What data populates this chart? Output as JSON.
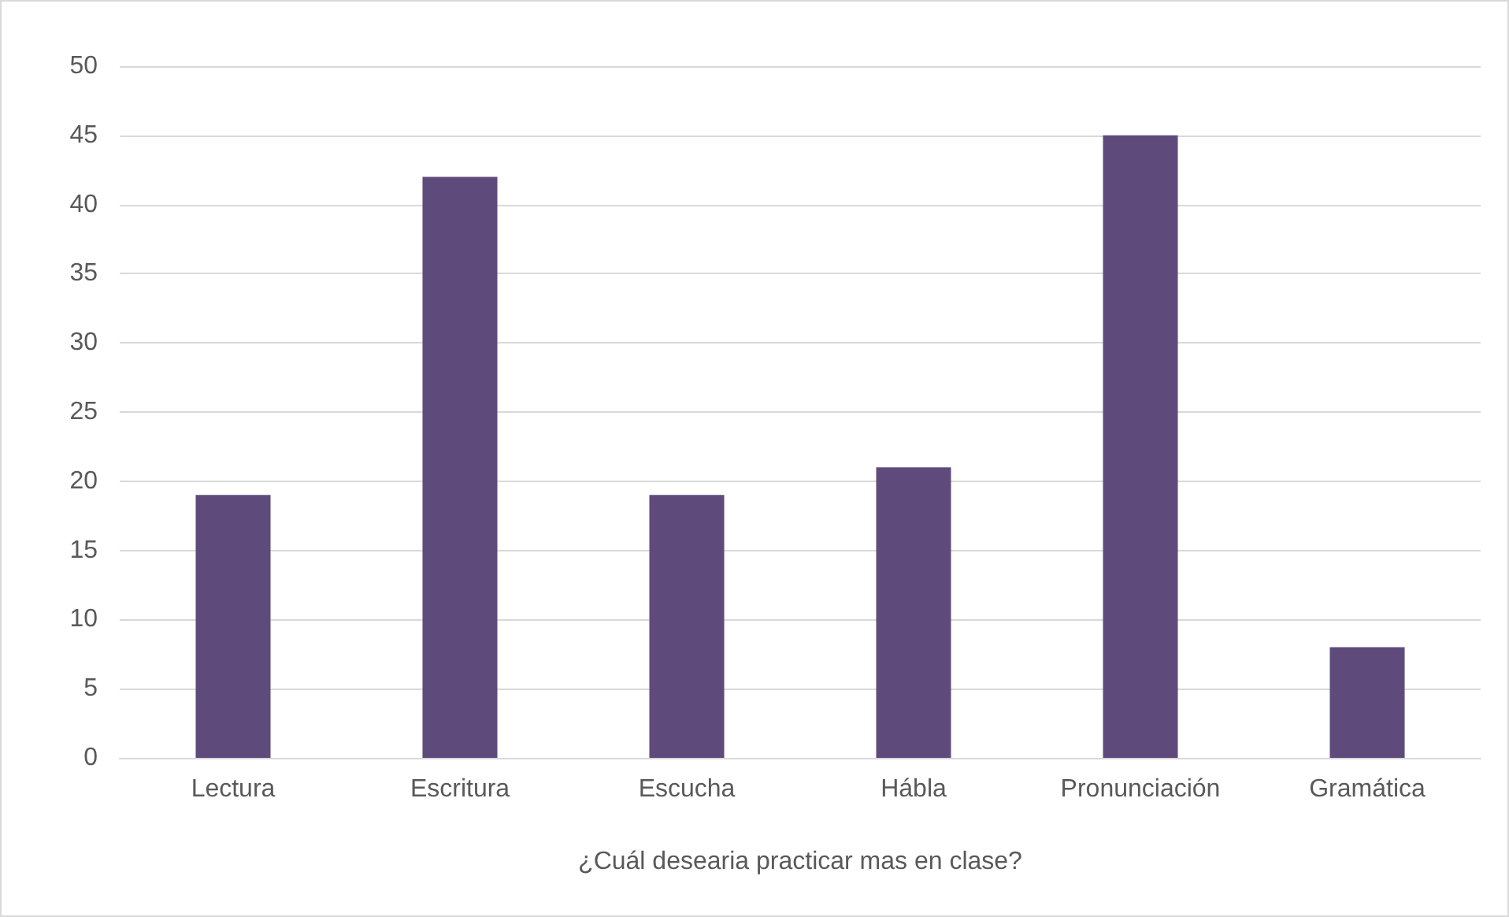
{
  "chart_data": {
    "type": "bar",
    "xlabel": "¿Cuál desearia practicar mas en clase?",
    "categories": [
      "Lectura",
      "Escritura",
      "Escucha",
      "Hábla",
      "Pronunciación",
      "Gramática"
    ],
    "values": [
      19,
      42,
      19,
      21,
      45,
      8
    ],
    "color": "#5f4b7b",
    "ylim": [
      0,
      50
    ],
    "yticks": [
      0,
      5,
      10,
      15,
      20,
      25,
      30,
      35,
      40,
      45,
      50
    ],
    "grid": "y"
  }
}
